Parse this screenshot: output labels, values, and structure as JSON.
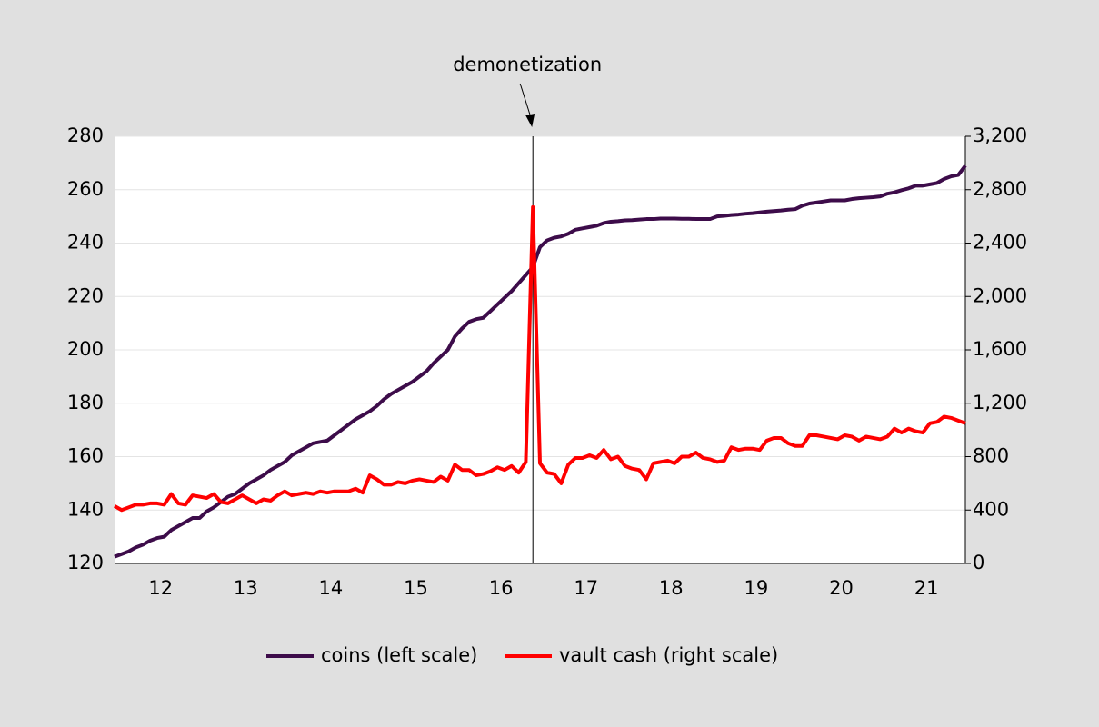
{
  "chart_data": {
    "type": "line",
    "annotation": {
      "text": "demonetization",
      "x": 59
    },
    "x": [
      0,
      1,
      2,
      3,
      4,
      5,
      6,
      7,
      8,
      9,
      10,
      11,
      12,
      13,
      14,
      15,
      16,
      17,
      18,
      19,
      20,
      21,
      22,
      23,
      24,
      25,
      26,
      27,
      28,
      29,
      30,
      31,
      32,
      33,
      34,
      35,
      36,
      37,
      38,
      39,
      40,
      41,
      42,
      43,
      44,
      45,
      46,
      47,
      48,
      49,
      50,
      51,
      52,
      53,
      54,
      55,
      56,
      57,
      58,
      59,
      60,
      61,
      62,
      63,
      64,
      65,
      66,
      67,
      68,
      69,
      70,
      71,
      72,
      73,
      74,
      75,
      76,
      77,
      78,
      79,
      80,
      81,
      82,
      83,
      84,
      85,
      86,
      87,
      88,
      89,
      90,
      91,
      92,
      93,
      94,
      95,
      96,
      97,
      98,
      99,
      100,
      101,
      102,
      103,
      104,
      105,
      106,
      107,
      108,
      109,
      110,
      111,
      112,
      113,
      114,
      115,
      116,
      117,
      118,
      119,
      120
    ],
    "xlim": [
      0,
      120
    ],
    "xticks": [
      {
        "value": 6.5,
        "label": "12"
      },
      {
        "value": 18.5,
        "label": "13"
      },
      {
        "value": 30.5,
        "label": "14"
      },
      {
        "value": 42.5,
        "label": "15"
      },
      {
        "value": 54.5,
        "label": "16"
      },
      {
        "value": 66.5,
        "label": "17"
      },
      {
        "value": 78.5,
        "label": "18"
      },
      {
        "value": 90.5,
        "label": "19"
      },
      {
        "value": 102.5,
        "label": "20"
      },
      {
        "value": 114.5,
        "label": "21"
      }
    ],
    "ylim": [
      120,
      280
    ],
    "yticks": [
      120,
      140,
      160,
      180,
      200,
      220,
      240,
      260,
      280
    ],
    "y2lim": [
      0,
      3200
    ],
    "y2ticks": [
      0,
      400,
      800,
      {
        "value": 1200,
        "label": "1,200"
      },
      {
        "value": 1600,
        "label": "1,600"
      },
      {
        "value": 2000,
        "label": "2,000"
      },
      {
        "value": 2400,
        "label": "2,400"
      },
      {
        "value": 2800,
        "label": "2,800"
      },
      {
        "value": 3200,
        "label": "3,200"
      }
    ],
    "grid": true,
    "legend": "bottom",
    "series": [
      {
        "name": "coins (left scale)",
        "color": "#3d0c4a",
        "axis": "y",
        "values": [
          122.5,
          123.5,
          124.5,
          126,
          127,
          128.5,
          129.5,
          130,
          132.5,
          134,
          135.5,
          137,
          137,
          139.5,
          141,
          143,
          145,
          146,
          148,
          150,
          151.5,
          153,
          155,
          156.5,
          158,
          160.5,
          162,
          163.5,
          165,
          165.5,
          166,
          168,
          170,
          172,
          174,
          175.5,
          177,
          179,
          181.5,
          183.5,
          185,
          186.5,
          188,
          190,
          192,
          195,
          197.5,
          200,
          205,
          208,
          210.5,
          211.5,
          212,
          214.5,
          217,
          219.5,
          222,
          225,
          228,
          231,
          238.5,
          241,
          242,
          242.5,
          243.5,
          245,
          245.5,
          246,
          246.5,
          247.5,
          248,
          248.2,
          248.5,
          248.6,
          248.8,
          249,
          249,
          249.2,
          249.2,
          249.2,
          249.1,
          249.1,
          249,
          249,
          249,
          250,
          250.2,
          250.5,
          250.7,
          251,
          251.2,
          251.5,
          251.8,
          252,
          252.2,
          252.5,
          252.7,
          254,
          254.8,
          255.2,
          255.6,
          256,
          256,
          256,
          256.5,
          256.8,
          257,
          257.2,
          257.5,
          258.5,
          259,
          259.8,
          260.5,
          261.5,
          261.5,
          262,
          262.5,
          264,
          265,
          265.5,
          269
        ]
      },
      {
        "name": "vault cash (right scale)",
        "color": "#ff0000",
        "axis": "y2",
        "values": [
          430,
          400,
          420,
          440,
          440,
          450,
          450,
          440,
          520,
          450,
          440,
          510,
          500,
          490,
          520,
          460,
          450,
          480,
          510,
          480,
          450,
          480,
          470,
          510,
          540,
          510,
          520,
          530,
          520,
          540,
          530,
          540,
          540,
          540,
          560,
          530,
          660,
          630,
          590,
          590,
          610,
          600,
          620,
          630,
          620,
          610,
          650,
          620,
          740,
          700,
          700,
          660,
          670,
          690,
          720,
          700,
          730,
          680,
          760,
          2670,
          750,
          680,
          670,
          600,
          740,
          790,
          790,
          810,
          790,
          850,
          780,
          800,
          730,
          710,
          700,
          630,
          750,
          760,
          770,
          750,
          800,
          800,
          830,
          790,
          780,
          760,
          770,
          870,
          850,
          860,
          860,
          850,
          920,
          940,
          940,
          900,
          880,
          880,
          960,
          960,
          950,
          940,
          930,
          960,
          950,
          920,
          950,
          940,
          930,
          950,
          1010,
          980,
          1010,
          990,
          980,
          1050,
          1060,
          1100,
          1090,
          1070,
          1050
        ]
      }
    ]
  }
}
